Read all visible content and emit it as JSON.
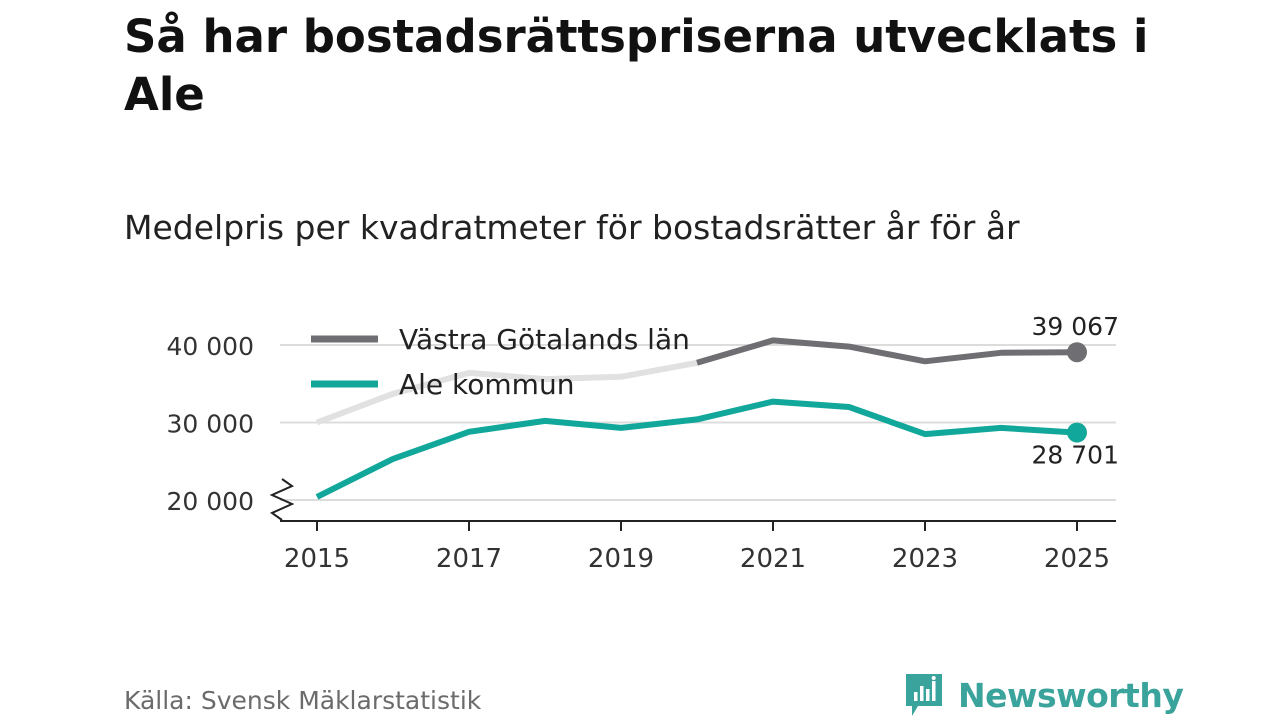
{
  "title": "Så har bostadsrättspriserna utvecklats i Ale",
  "subtitle": "Medelpris per kvadratmeter för bostadsrätter år för år",
  "source": "Källa: Svensk Mäklarstatistik",
  "brand": {
    "name": "Newsworthy",
    "logo_icon": "newsworthy-logo-icon"
  },
  "colors": {
    "series_region": "#6e6e73",
    "series_region_faded": "#e1e1e1",
    "series_ale": "#12a79b",
    "grid": "#dcdcdc",
    "axis": "#222222",
    "brand": "#3aa39b"
  },
  "chart_data": {
    "type": "line",
    "x": [
      2015,
      2016,
      2017,
      2018,
      2019,
      2020,
      2021,
      2022,
      2023,
      2024,
      2025
    ],
    "xticks": [
      2015,
      2017,
      2019,
      2021,
      2023,
      2025
    ],
    "xtick_labels": [
      "2015",
      "2017",
      "2019",
      "2021",
      "2023",
      "2025"
    ],
    "yticks": [
      20000,
      30000,
      40000
    ],
    "ytick_labels": [
      "20 000",
      "30 000",
      "40 000"
    ],
    "ylim": [
      17500,
      43000
    ],
    "axis_break": true,
    "series": [
      {
        "name": "Västra Götalands län",
        "values": [
          30000,
          33700,
          36400,
          35600,
          35900,
          37700,
          40600,
          39800,
          37900,
          39000,
          39067
        ],
        "end_label": "39 067"
      },
      {
        "name": "Ale kommun",
        "values": [
          20400,
          25300,
          28800,
          30200,
          29300,
          30400,
          32700,
          32000,
          28500,
          29300,
          28701
        ],
        "end_label": "28 701"
      }
    ],
    "legend_position": "top-left"
  }
}
